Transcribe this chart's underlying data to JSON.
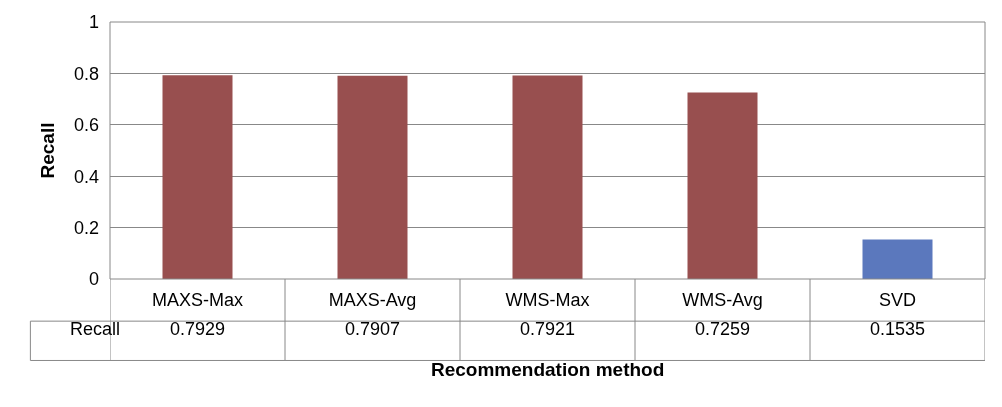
{
  "chart_data": {
    "type": "bar",
    "xlabel": "Recommendation method",
    "ylabel": "Recall",
    "categories": [
      "MAXS-Max",
      "MAXS-Avg",
      "WMS-Max",
      "WMS-Avg",
      "SVD"
    ],
    "series": [
      {
        "name": "Recall",
        "values": [
          0.7929,
          0.7907,
          0.7921,
          0.7259,
          0.1535
        ],
        "colors": [
          "#984f4f",
          "#984f4f",
          "#984f4f",
          "#984f4f",
          "#5b78bd"
        ]
      }
    ],
    "ylim": [
      0,
      1
    ],
    "yticks": [
      0,
      0.2,
      0.4,
      0.6,
      0.8,
      1
    ],
    "grid": "y",
    "data_labels": true
  }
}
